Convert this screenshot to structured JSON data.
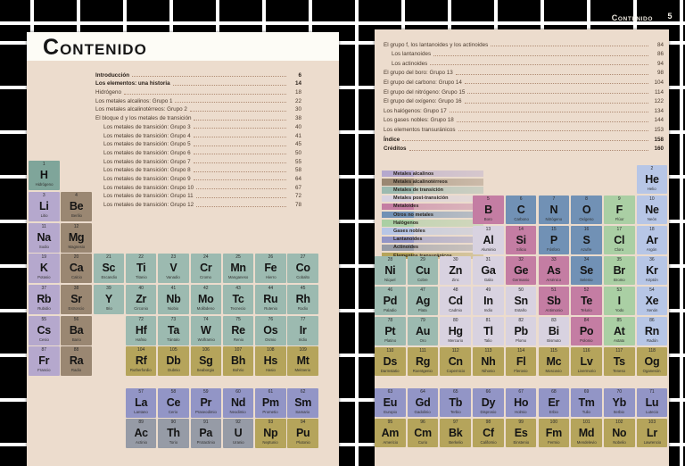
{
  "running_header": {
    "title": "Contenido",
    "page_number": "5"
  },
  "left_page": {
    "title": "Contenido",
    "toc": [
      {
        "label": "Introducción",
        "page": "6",
        "bold": true,
        "indent": false
      },
      {
        "label": "Los elementos: una historia",
        "page": "14",
        "bold": true,
        "indent": false
      },
      {
        "label": "Hidrógeno",
        "page": "18",
        "bold": false,
        "indent": false
      },
      {
        "label": "Los metales alcalinos: Grupo 1",
        "page": "22",
        "bold": false,
        "indent": false
      },
      {
        "label": "Los metales alcalinotérreos: Grupo 2",
        "page": "30",
        "bold": false,
        "indent": false
      },
      {
        "label": "El bloque d y los metales de transición",
        "page": "38",
        "bold": false,
        "indent": false
      },
      {
        "label": "Los metales de transición: Grupo 3",
        "page": "40",
        "bold": false,
        "indent": true
      },
      {
        "label": "Los metales de transición: Grupo 4",
        "page": "41",
        "bold": false,
        "indent": true
      },
      {
        "label": "Los metales de transición: Grupo 5",
        "page": "45",
        "bold": false,
        "indent": true
      },
      {
        "label": "Los metales de transición: Grupo 6",
        "page": "50",
        "bold": false,
        "indent": true
      },
      {
        "label": "Los metales de transición: Grupo 7",
        "page": "55",
        "bold": false,
        "indent": true
      },
      {
        "label": "Los metales de transición: Grupo 8",
        "page": "58",
        "bold": false,
        "indent": true
      },
      {
        "label": "Los metales de transición: Grupo 9",
        "page": "64",
        "bold": false,
        "indent": true
      },
      {
        "label": "Los metales de transición: Grupo 10",
        "page": "67",
        "bold": false,
        "indent": true
      },
      {
        "label": "Los metales de transición: Grupo 11",
        "page": "72",
        "bold": false,
        "indent": true
      },
      {
        "label": "Los metales de transición: Grupo 12",
        "page": "78",
        "bold": false,
        "indent": true
      }
    ]
  },
  "right_page": {
    "toc": [
      {
        "label": "El grupo f, los lantanoides y los actinoides",
        "page": "84",
        "bold": false,
        "indent": false
      },
      {
        "label": "Los lantanoides",
        "page": "86",
        "bold": false,
        "indent": true
      },
      {
        "label": "Los actinoides",
        "page": "94",
        "bold": false,
        "indent": true
      },
      {
        "label": "El grupo del boro: Grupo 13",
        "page": "98",
        "bold": false,
        "indent": false
      },
      {
        "label": "El grupo del carbono: Grupo 14",
        "page": "104",
        "bold": false,
        "indent": false
      },
      {
        "label": "El grupo del nitrógeno: Grupo 15",
        "page": "114",
        "bold": false,
        "indent": false
      },
      {
        "label": "El grupo del oxígeno: Grupo 16",
        "page": "122",
        "bold": false,
        "indent": false
      },
      {
        "label": "Los halógenos: Grupo 17",
        "page": "134",
        "bold": false,
        "indent": false
      },
      {
        "label": "Los gases nobles: Grupo 18",
        "page": "144",
        "bold": false,
        "indent": false
      },
      {
        "label": "Los elementos transuránicos",
        "page": "153",
        "bold": false,
        "indent": false
      },
      {
        "label": "Índice",
        "page": "158",
        "bold": true,
        "indent": false
      },
      {
        "label": "Créditos",
        "page": "160",
        "bold": true,
        "indent": false
      }
    ],
    "legend": [
      {
        "key": "alkali",
        "label": "Metales alcalinos"
      },
      {
        "key": "alkaline",
        "label": "Metales alcalinotérreos"
      },
      {
        "key": "transition",
        "label": "Metales de transición"
      },
      {
        "key": "post",
        "label": "Metales post-transición"
      },
      {
        "key": "metalloid",
        "label": "Metaloides"
      },
      {
        "key": "nonmetal",
        "label": "Otros no metales"
      },
      {
        "key": "halogen",
        "label": "Halógenos"
      },
      {
        "key": "noble",
        "label": "Gases nobles"
      },
      {
        "key": "lanthanide",
        "label": "Lantanoides"
      },
      {
        "key": "actinide",
        "label": "Actinoides"
      },
      {
        "key": "transuranic",
        "label": "Elementos transuránicos"
      }
    ]
  },
  "periodic": {
    "category_colors": {
      "hydrogen": "#7fa59a",
      "alkali": "#b5a8cd",
      "alkaline": "#9a8772",
      "transition": "#9cbab0",
      "post": "#d8d2e0",
      "metalloid": "#c47da3",
      "nonmetal": "#7191b5",
      "halogen": "#aacfa4",
      "noble": "#b7c6e6",
      "lanthanide": "#9295c6",
      "actinide": "#969ba6",
      "transuranic": "#b5a45b"
    },
    "element_fields": [
      "symbol",
      "number",
      "name",
      "category",
      "row",
      "col"
    ],
    "left_elements": [
      [
        "H",
        1,
        "Hidrógeno",
        "hydrogen",
        1,
        1
      ],
      [
        "Li",
        3,
        "Litio",
        "alkali",
        2,
        1
      ],
      [
        "Be",
        4,
        "Berilio",
        "alkaline",
        2,
        2
      ],
      [
        "Na",
        11,
        "Sodio",
        "alkali",
        3,
        1
      ],
      [
        "Mg",
        12,
        "Magnesio",
        "alkaline",
        3,
        2
      ],
      [
        "K",
        19,
        "Potasio",
        "alkali",
        4,
        1
      ],
      [
        "Ca",
        20,
        "Calcio",
        "alkaline",
        4,
        2
      ],
      [
        "Sc",
        21,
        "Escandio",
        "transition",
        4,
        3
      ],
      [
        "Ti",
        22,
        "Titanio",
        "transition",
        4,
        4
      ],
      [
        "V",
        23,
        "Vanadio",
        "transition",
        4,
        5
      ],
      [
        "Cr",
        24,
        "Cromo",
        "transition",
        4,
        6
      ],
      [
        "Mn",
        25,
        "Manganeso",
        "transition",
        4,
        7
      ],
      [
        "Fe",
        26,
        "Hierro",
        "transition",
        4,
        8
      ],
      [
        "Co",
        27,
        "Cobalto",
        "transition",
        4,
        9
      ],
      [
        "Rb",
        37,
        "Rubidio",
        "alkali",
        5,
        1
      ],
      [
        "Sr",
        38,
        "Estroncio",
        "alkaline",
        5,
        2
      ],
      [
        "Y",
        39,
        "Itrio",
        "transition",
        5,
        3
      ],
      [
        "Zr",
        40,
        "Circonio",
        "transition",
        5,
        4
      ],
      [
        "Nb",
        41,
        "Niobio",
        "transition",
        5,
        5
      ],
      [
        "Mo",
        42,
        "Molibdeno",
        "transition",
        5,
        6
      ],
      [
        "Tc",
        43,
        "Tecnecio",
        "transition",
        5,
        7
      ],
      [
        "Ru",
        44,
        "Rutenio",
        "transition",
        5,
        8
      ],
      [
        "Rh",
        45,
        "Rodio",
        "transition",
        5,
        9
      ],
      [
        "Cs",
        55,
        "Cesio",
        "alkali",
        6,
        1
      ],
      [
        "Ba",
        56,
        "Bario",
        "alkaline",
        6,
        2
      ],
      [
        "Hf",
        72,
        "Hafnio",
        "transition",
        6,
        4
      ],
      [
        "Ta",
        73,
        "Tántalo",
        "transition",
        6,
        5
      ],
      [
        "W",
        74,
        "Wolframio",
        "transition",
        6,
        6
      ],
      [
        "Re",
        75,
        "Renio",
        "transition",
        6,
        7
      ],
      [
        "Os",
        76,
        "Osmio",
        "transition",
        6,
        8
      ],
      [
        "Ir",
        77,
        "Iridio",
        "transition",
        6,
        9
      ],
      [
        "Fr",
        87,
        "Francio",
        "alkali",
        7,
        1
      ],
      [
        "Ra",
        88,
        "Radio",
        "alkaline",
        7,
        2
      ],
      [
        "Rf",
        104,
        "Rutherfordio",
        "transuranic",
        7,
        4
      ],
      [
        "Db",
        105,
        "Dubnio",
        "transuranic",
        7,
        5
      ],
      [
        "Sg",
        106,
        "Seaborgio",
        "transuranic",
        7,
        6
      ],
      [
        "Bh",
        107,
        "Bohrio",
        "transuranic",
        7,
        7
      ],
      [
        "Hs",
        108,
        "Hasio",
        "transuranic",
        7,
        8
      ],
      [
        "Mt",
        109,
        "Meitnerio",
        "transuranic",
        7,
        9
      ],
      [
        "La",
        57,
        "Lantano",
        "lanthanide",
        8,
        4
      ],
      [
        "Ce",
        58,
        "Cerio",
        "lanthanide",
        8,
        5
      ],
      [
        "Pr",
        59,
        "Praseodimio",
        "lanthanide",
        8,
        6
      ],
      [
        "Nd",
        60,
        "Neodimio",
        "lanthanide",
        8,
        7
      ],
      [
        "Pm",
        61,
        "Prometio",
        "lanthanide",
        8,
        8
      ],
      [
        "Sm",
        62,
        "Samario",
        "lanthanide",
        8,
        9
      ],
      [
        "Ac",
        89,
        "Actinio",
        "actinide",
        9,
        4
      ],
      [
        "Th",
        90,
        "Torio",
        "actinide",
        9,
        5
      ],
      [
        "Pa",
        91,
        "Protactinio",
        "actinide",
        9,
        6
      ],
      [
        "U",
        92,
        "Uranio",
        "actinide",
        9,
        7
      ],
      [
        "Np",
        93,
        "Neptunio",
        "transuranic",
        9,
        8
      ],
      [
        "Pu",
        94,
        "Plutonio",
        "transuranic",
        9,
        9
      ]
    ],
    "right_elements": [
      [
        "He",
        2,
        "Helio",
        "noble",
        1,
        9
      ],
      [
        "B",
        5,
        "Boro",
        "metalloid",
        2,
        4
      ],
      [
        "C",
        6,
        "Carbono",
        "nonmetal",
        2,
        5
      ],
      [
        "N",
        7,
        "Nitrógeno",
        "nonmetal",
        2,
        6
      ],
      [
        "O",
        8,
        "Oxígeno",
        "nonmetal",
        2,
        7
      ],
      [
        "F",
        9,
        "Flúor",
        "halogen",
        2,
        8
      ],
      [
        "Ne",
        10,
        "Neón",
        "noble",
        2,
        9
      ],
      [
        "Al",
        13,
        "Aluminio",
        "post",
        3,
        4
      ],
      [
        "Si",
        14,
        "Silicio",
        "metalloid",
        3,
        5
      ],
      [
        "P",
        15,
        "Fósforo",
        "nonmetal",
        3,
        6
      ],
      [
        "S",
        16,
        "Azufre",
        "nonmetal",
        3,
        7
      ],
      [
        "Cl",
        17,
        "Cloro",
        "halogen",
        3,
        8
      ],
      [
        "Ar",
        18,
        "Argón",
        "noble",
        3,
        9
      ],
      [
        "Ni",
        28,
        "Níquel",
        "transition",
        4,
        1
      ],
      [
        "Cu",
        29,
        "Cobre",
        "transition",
        4,
        2
      ],
      [
        "Zn",
        30,
        "Zinc",
        "post",
        4,
        3
      ],
      [
        "Ga",
        31,
        "Galio",
        "post",
        4,
        4
      ],
      [
        "Ge",
        32,
        "Germanio",
        "metalloid",
        4,
        5
      ],
      [
        "As",
        33,
        "Arsénico",
        "metalloid",
        4,
        6
      ],
      [
        "Se",
        34,
        "Selenio",
        "nonmetal",
        4,
        7
      ],
      [
        "Br",
        35,
        "Bromo",
        "halogen",
        4,
        8
      ],
      [
        "Kr",
        36,
        "Kriptón",
        "noble",
        4,
        9
      ],
      [
        "Pd",
        46,
        "Paladio",
        "transition",
        5,
        1
      ],
      [
        "Ag",
        47,
        "Plata",
        "transition",
        5,
        2
      ],
      [
        "Cd",
        48,
        "Cadmio",
        "post",
        5,
        3
      ],
      [
        "In",
        49,
        "Indio",
        "post",
        5,
        4
      ],
      [
        "Sn",
        50,
        "Estaño",
        "post",
        5,
        5
      ],
      [
        "Sb",
        51,
        "Antimonio",
        "metalloid",
        5,
        6
      ],
      [
        "Te",
        52,
        "Telurio",
        "metalloid",
        5,
        7
      ],
      [
        "I",
        53,
        "Yodo",
        "halogen",
        5,
        8
      ],
      [
        "Xe",
        54,
        "Xenón",
        "noble",
        5,
        9
      ],
      [
        "Pt",
        78,
        "Platino",
        "transition",
        6,
        1
      ],
      [
        "Au",
        79,
        "Oro",
        "transition",
        6,
        2
      ],
      [
        "Hg",
        80,
        "Mercurio",
        "post",
        6,
        3
      ],
      [
        "Tl",
        81,
        "Talio",
        "post",
        6,
        4
      ],
      [
        "Pb",
        82,
        "Plomo",
        "post",
        6,
        5
      ],
      [
        "Bi",
        83,
        "Bismuto",
        "post",
        6,
        6
      ],
      [
        "Po",
        84,
        "Polonio",
        "metalloid",
        6,
        7
      ],
      [
        "At",
        85,
        "Astato",
        "halogen",
        6,
        8
      ],
      [
        "Rn",
        86,
        "Radón",
        "noble",
        6,
        9
      ],
      [
        "Ds",
        110,
        "Darmstatio",
        "transuranic",
        7,
        1
      ],
      [
        "Rg",
        111,
        "Roentgenio",
        "transuranic",
        7,
        2
      ],
      [
        "Cn",
        112,
        "Copernicio",
        "transuranic",
        7,
        3
      ],
      [
        "Nh",
        113,
        "Nihonio",
        "transuranic",
        7,
        4
      ],
      [
        "Fl",
        114,
        "Flerovio",
        "transuranic",
        7,
        5
      ],
      [
        "Mc",
        115,
        "Moscovio",
        "transuranic",
        7,
        6
      ],
      [
        "Lv",
        116,
        "Livermorio",
        "transuranic",
        7,
        7
      ],
      [
        "Ts",
        117,
        "Teneso",
        "transuranic",
        7,
        8
      ],
      [
        "Og",
        118,
        "Oganesón",
        "transuranic",
        7,
        9
      ],
      [
        "Eu",
        63,
        "Europio",
        "lanthanide",
        8,
        1
      ],
      [
        "Gd",
        64,
        "Gadolinio",
        "lanthanide",
        8,
        2
      ],
      [
        "Tb",
        65,
        "Terbio",
        "lanthanide",
        8,
        3
      ],
      [
        "Dy",
        66,
        "Disprosio",
        "lanthanide",
        8,
        4
      ],
      [
        "Ho",
        67,
        "Holmio",
        "lanthanide",
        8,
        5
      ],
      [
        "Er",
        68,
        "Erbio",
        "lanthanide",
        8,
        6
      ],
      [
        "Tm",
        69,
        "Tulio",
        "lanthanide",
        8,
        7
      ],
      [
        "Yb",
        70,
        "Iterbio",
        "lanthanide",
        8,
        8
      ],
      [
        "Lu",
        71,
        "Lutecio",
        "lanthanide",
        8,
        9
      ],
      [
        "Am",
        95,
        "Americio",
        "transuranic",
        9,
        1
      ],
      [
        "Cm",
        96,
        "Curio",
        "transuranic",
        9,
        2
      ],
      [
        "Bk",
        97,
        "Berkelio",
        "transuranic",
        9,
        3
      ],
      [
        "Cf",
        98,
        "Californio",
        "transuranic",
        9,
        4
      ],
      [
        "Es",
        99,
        "Einstenio",
        "transuranic",
        9,
        5
      ],
      [
        "Fm",
        100,
        "Fermio",
        "transuranic",
        9,
        6
      ],
      [
        "Md",
        101,
        "Mendelevio",
        "transuranic",
        9,
        7
      ],
      [
        "No",
        102,
        "Nobelio",
        "transuranic",
        9,
        8
      ],
      [
        "Lr",
        103,
        "Lawrencio",
        "transuranic",
        9,
        9
      ]
    ]
  }
}
